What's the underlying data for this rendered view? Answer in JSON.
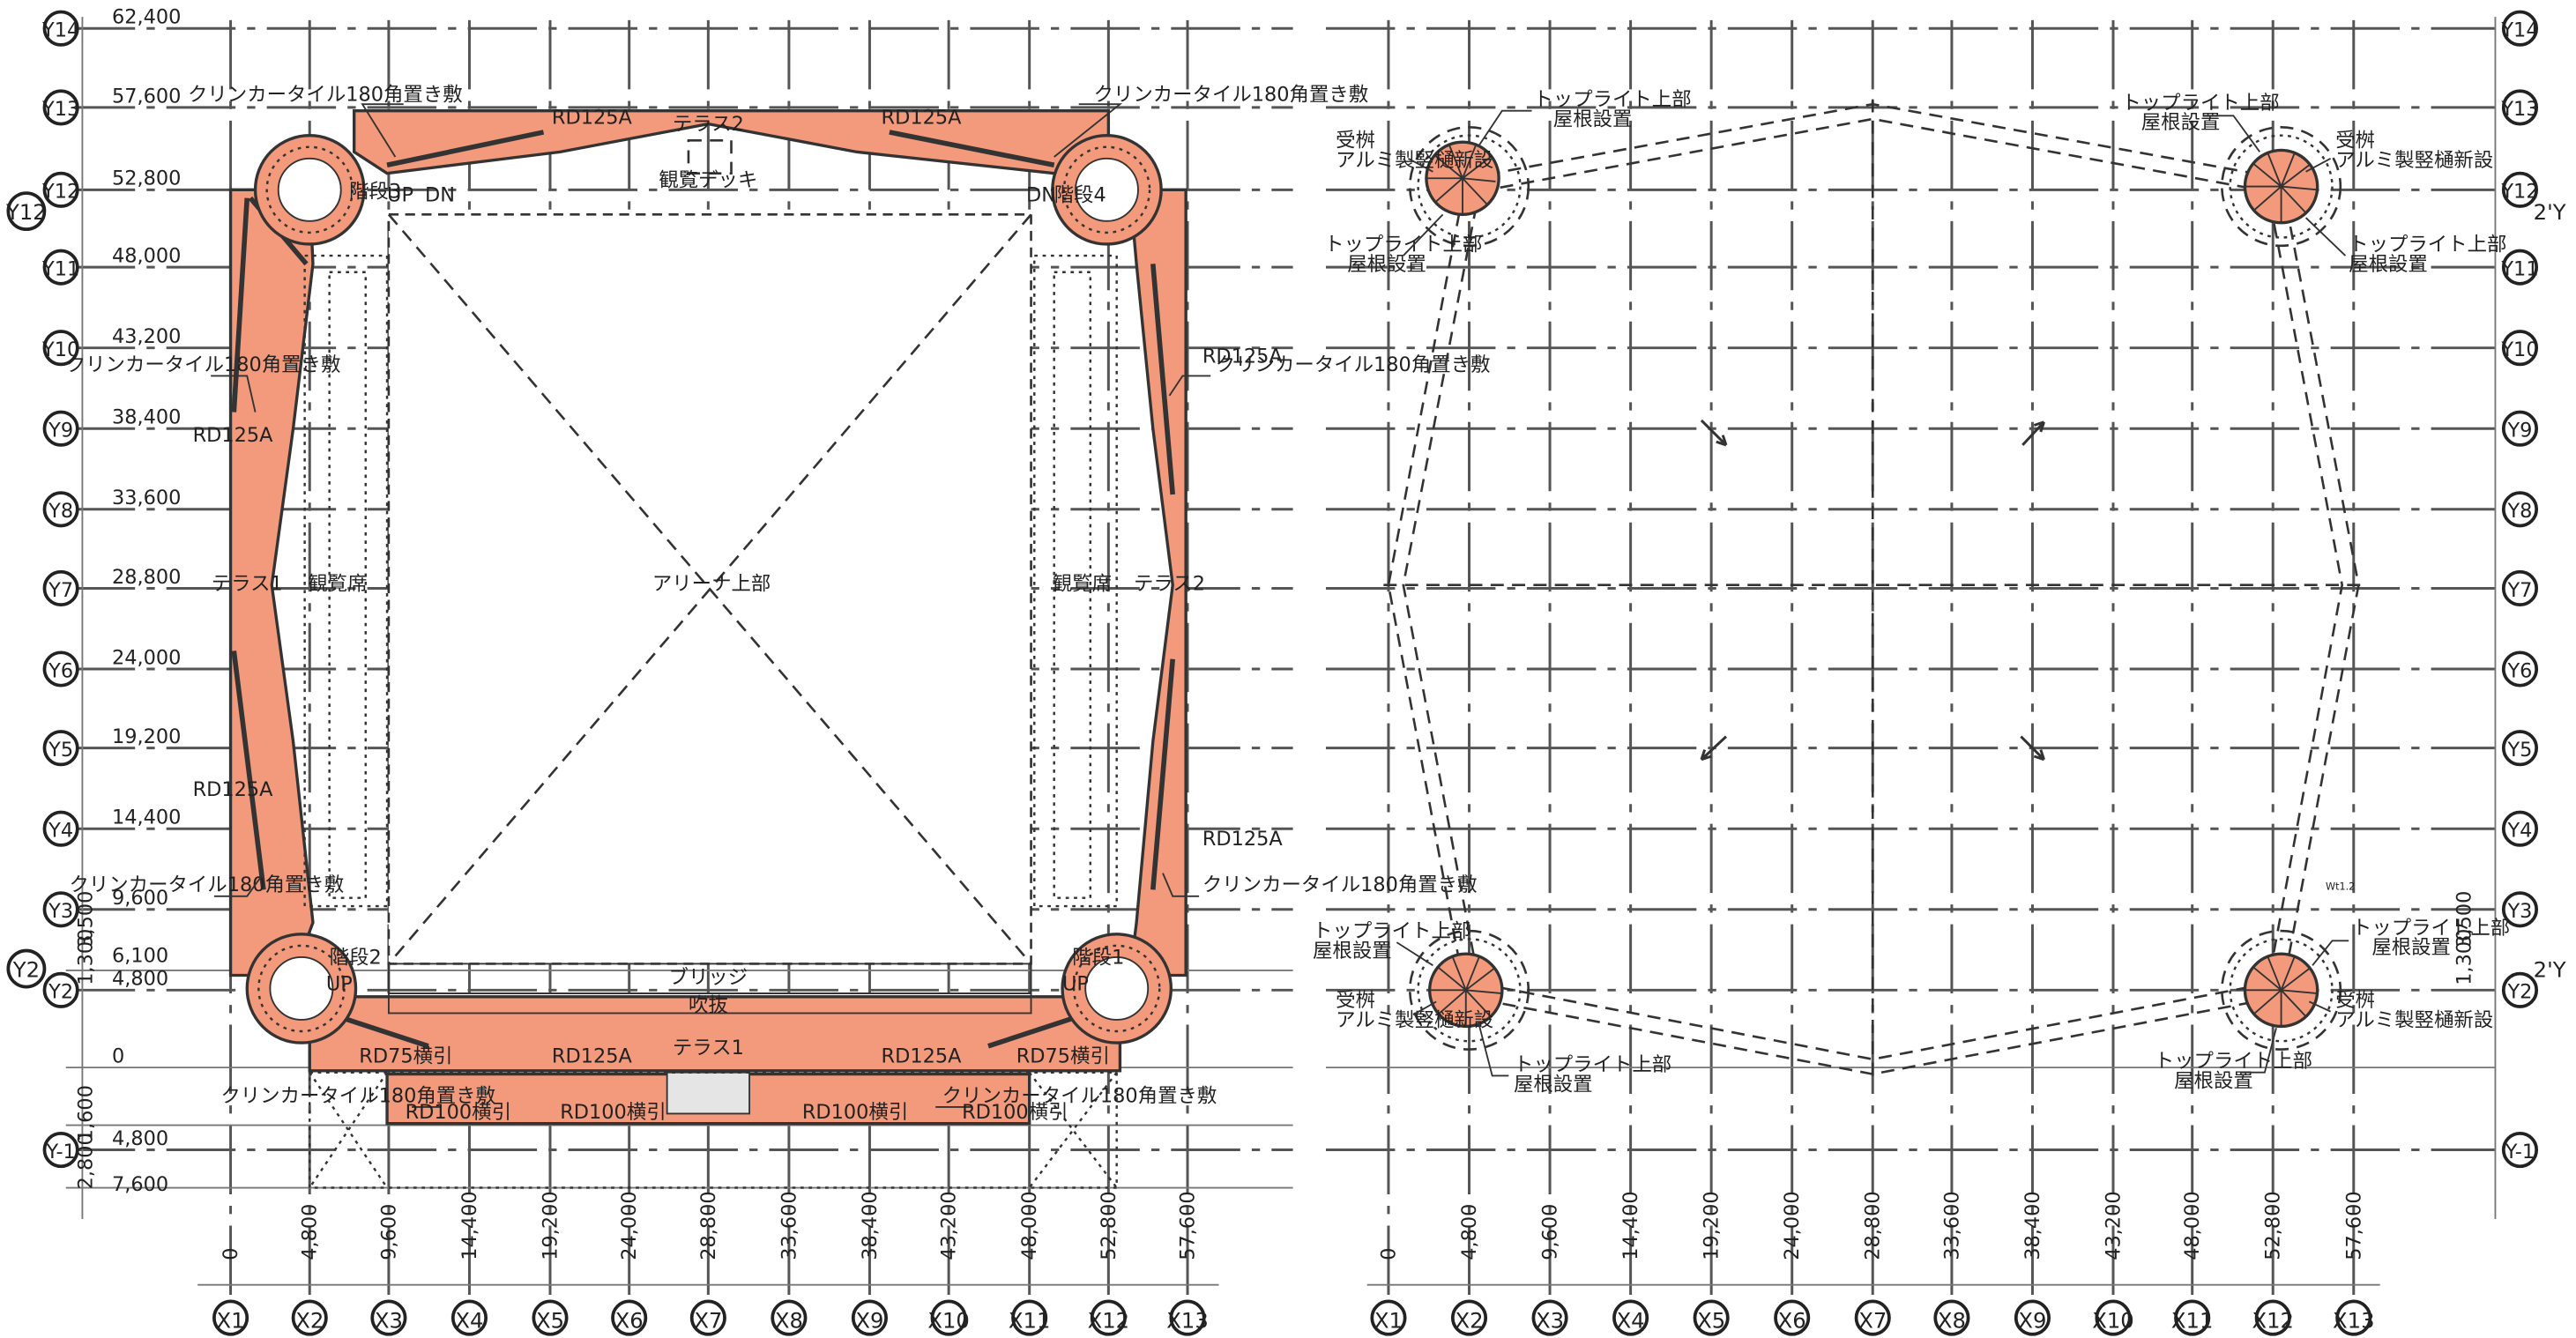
{
  "grid_x_labels": [
    "X1",
    "X2",
    "X3",
    "X4",
    "X5",
    "X6",
    "X7",
    "X8",
    "X9",
    "X10",
    "X11",
    "X12",
    "X13"
  ],
  "grid_y_labels": [
    "Y-1",
    "Y2",
    "Y3",
    "Y4",
    "Y5",
    "Y6",
    "Y7",
    "Y8",
    "Y9",
    "Y10",
    "Y11",
    "Y12",
    "Y13",
    "Y14"
  ],
  "grid_x_dims": [
    "0",
    "4,800",
    "9,600",
    "14,400",
    "19,200",
    "24,000",
    "28,800",
    "33,600",
    "38,400",
    "43,200",
    "48,000",
    "52,800",
    "57,600"
  ],
  "grid_y_dims": [
    "62,400",
    "57,600",
    "52,800",
    "48,000",
    "43,200",
    "38,400",
    "33,600",
    "28,800",
    "24,000",
    "19,200",
    "14,400",
    "9,600",
    "6,100",
    "4,800",
    "0",
    "4,800",
    "7,600"
  ],
  "extra_labels": {
    "y12_left": "Y12",
    "y2_left": "Y2",
    "y12_right": "2'Y",
    "y2_right": "2'Y",
    "dim_3500": "3,500",
    "dim_1300": "1,300",
    "dim_1600": "1,600",
    "dim_2800": "2,800",
    "small_note": "Wt1.2"
  },
  "left_plan": {
    "terrace1": "テラス1",
    "terrace2": "テラス2",
    "deck": "観覧デッキ",
    "bridge": "ブリッジ",
    "atrium": "吹抜",
    "arena_top": "アリーナ上部",
    "terrace_side1": "テラス1",
    "terrace_side2": "テラス2",
    "seat1": "観覧席",
    "seat2": "観覧席",
    "stair1": "階段1",
    "stair2": "階段2",
    "stair3": "階段3",
    "stair4": "階段4",
    "clinker": "クリンカータイル180角置き敷",
    "rd125a": "RD125A",
    "rd75": "RD75横引",
    "rd100": "RD100横引",
    "up": "UP",
    "dn": "DN"
  },
  "right_plan": {
    "toplight": "トップライト上部",
    "roof_install": "屋根設置",
    "receiver": "受桝",
    "alu_gutter": "アルミ製竪樋新設"
  }
}
